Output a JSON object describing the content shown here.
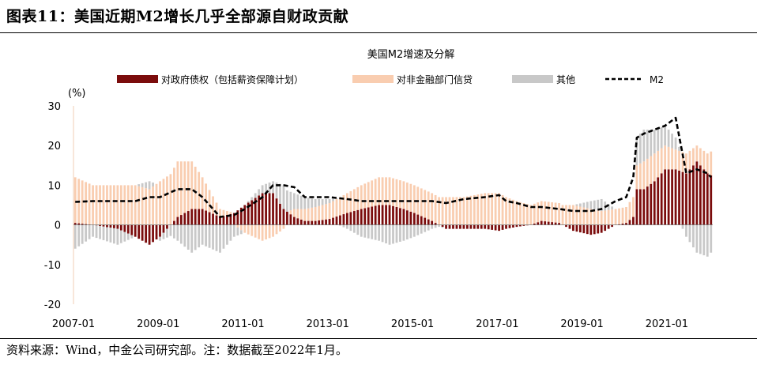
{
  "figure": {
    "title": "图表11：美国近期M2增长几乎全部源自财政贡献",
    "source": "资料来源：Wind，中金公司研究部。注：数据截至2022年1月。"
  },
  "chart_data": {
    "type": "bar",
    "stacked": true,
    "title": "美国M2增速及分解",
    "unit_label": "(%)",
    "ylim": [
      -20,
      30
    ],
    "yticks": [
      "30",
      "20",
      "10",
      "0",
      "-10",
      "-20"
    ],
    "xticks": [
      "2007-01",
      "2009-01",
      "2011-01",
      "2013-01",
      "2015-01",
      "2017-01",
      "2019-01",
      "2021-01"
    ],
    "grid": false,
    "legend_position": "top",
    "x_range": [
      "2007-01",
      "2022-01"
    ],
    "frequency": "monthly",
    "colors": {
      "government": "#7b0c0c",
      "non_financial_credit": "#f9cdb0",
      "other": "#c8c8c8",
      "m2": "#000000"
    },
    "series": [
      {
        "name": "对政府债权（包括薪资保障计划）",
        "kind": "bar",
        "anchors": [
          [
            "2007-01",
            0.5
          ],
          [
            "2007-06",
            0
          ],
          [
            "2008-01",
            -1
          ],
          [
            "2008-06",
            -3
          ],
          [
            "2008-10",
            -5
          ],
          [
            "2009-01",
            -3
          ],
          [
            "2009-06",
            2
          ],
          [
            "2009-10",
            4
          ],
          [
            "2010-01",
            4
          ],
          [
            "2010-06",
            2
          ],
          [
            "2010-10",
            3
          ],
          [
            "2011-01",
            5
          ],
          [
            "2011-06",
            8
          ],
          [
            "2011-09",
            8
          ],
          [
            "2011-12",
            4
          ],
          [
            "2012-03",
            2
          ],
          [
            "2012-06",
            1
          ],
          [
            "2012-09",
            1
          ],
          [
            "2013-01",
            1.5
          ],
          [
            "2013-06",
            3
          ],
          [
            "2013-10",
            4
          ],
          [
            "2014-03",
            5
          ],
          [
            "2014-06",
            5
          ],
          [
            "2014-10",
            4
          ],
          [
            "2015-01",
            3
          ],
          [
            "2015-06",
            1
          ],
          [
            "2015-10",
            -1
          ],
          [
            "2016-03",
            -1
          ],
          [
            "2016-09",
            -1
          ],
          [
            "2017-01",
            -1.5
          ],
          [
            "2017-03",
            -1
          ],
          [
            "2017-06",
            -0.5
          ],
          [
            "2017-10",
            0
          ],
          [
            "2018-01",
            1
          ],
          [
            "2018-06",
            0.5
          ],
          [
            "2018-10",
            -1.5
          ],
          [
            "2019-03",
            -2.5
          ],
          [
            "2019-06",
            -2
          ],
          [
            "2019-10",
            0
          ],
          [
            "2020-01",
            0.5
          ],
          [
            "2020-03",
            2
          ],
          [
            "2020-04",
            9
          ],
          [
            "2020-06",
            9
          ],
          [
            "2020-09",
            11
          ],
          [
            "2020-12",
            14
          ],
          [
            "2021-03",
            14
          ],
          [
            "2021-06",
            13
          ],
          [
            "2021-09",
            16
          ],
          [
            "2021-12",
            13
          ],
          [
            "2022-01",
            12.5
          ]
        ]
      },
      {
        "name": "对非金融部门信贷",
        "kind": "bar",
        "anchors": [
          [
            "2007-01",
            11.5
          ],
          [
            "2007-06",
            10
          ],
          [
            "2008-01",
            10
          ],
          [
            "2008-06",
            10
          ],
          [
            "2008-10",
            9
          ],
          [
            "2009-01",
            11
          ],
          [
            "2009-06",
            14
          ],
          [
            "2009-10",
            12
          ],
          [
            "2010-01",
            8
          ],
          [
            "2010-06",
            2
          ],
          [
            "2010-10",
            0
          ],
          [
            "2011-01",
            -2
          ],
          [
            "2011-06",
            -4
          ],
          [
            "2011-09",
            -3
          ],
          [
            "2011-12",
            -1
          ],
          [
            "2012-03",
            2
          ],
          [
            "2012-06",
            3
          ],
          [
            "2012-09",
            3.5
          ],
          [
            "2013-01",
            4
          ],
          [
            "2013-06",
            5
          ],
          [
            "2013-10",
            6
          ],
          [
            "2014-03",
            7
          ],
          [
            "2014-06",
            7
          ],
          [
            "2014-10",
            7
          ],
          [
            "2015-01",
            7
          ],
          [
            "2015-06",
            7
          ],
          [
            "2015-10",
            7
          ],
          [
            "2016-03",
            7
          ],
          [
            "2016-09",
            8
          ],
          [
            "2017-01",
            8
          ],
          [
            "2017-03",
            7
          ],
          [
            "2017-06",
            6
          ],
          [
            "2017-10",
            5
          ],
          [
            "2018-01",
            5
          ],
          [
            "2018-06",
            5
          ],
          [
            "2018-10",
            5
          ],
          [
            "2019-03",
            4
          ],
          [
            "2019-06",
            3.5
          ],
          [
            "2019-10",
            4
          ],
          [
            "2020-01",
            4
          ],
          [
            "2020-03",
            5
          ],
          [
            "2020-04",
            6
          ],
          [
            "2020-06",
            7
          ],
          [
            "2020-09",
            7
          ],
          [
            "2020-12",
            6
          ],
          [
            "2021-03",
            5
          ],
          [
            "2021-06",
            5
          ],
          [
            "2021-09",
            4
          ],
          [
            "2021-12",
            5
          ],
          [
            "2022-01",
            6
          ]
        ]
      },
      {
        "name": "其他",
        "kind": "bar",
        "anchors": [
          [
            "2007-01",
            -6
          ],
          [
            "2007-06",
            -3
          ],
          [
            "2008-01",
            -4
          ],
          [
            "2008-06",
            0
          ],
          [
            "2008-10",
            2
          ],
          [
            "2009-01",
            -1
          ],
          [
            "2009-06",
            -4
          ],
          [
            "2009-10",
            -7
          ],
          [
            "2010-01",
            -5
          ],
          [
            "2010-06",
            -7
          ],
          [
            "2010-10",
            -3
          ],
          [
            "2011-01",
            0
          ],
          [
            "2011-06",
            2
          ],
          [
            "2011-09",
            3
          ],
          [
            "2011-12",
            6
          ],
          [
            "2012-03",
            4
          ],
          [
            "2012-06",
            3
          ],
          [
            "2012-09",
            2
          ],
          [
            "2013-01",
            1
          ],
          [
            "2013-06",
            -1
          ],
          [
            "2013-10",
            -3
          ],
          [
            "2014-03",
            -4
          ],
          [
            "2014-06",
            -5
          ],
          [
            "2014-10",
            -4
          ],
          [
            "2015-01",
            -3
          ],
          [
            "2015-06",
            -1
          ],
          [
            "2015-10",
            0
          ],
          [
            "2016-03",
            0
          ],
          [
            "2016-09",
            0
          ],
          [
            "2017-01",
            0
          ],
          [
            "2017-03",
            0
          ],
          [
            "2017-06",
            0
          ],
          [
            "2017-10",
            0
          ],
          [
            "2018-01",
            0
          ],
          [
            "2018-06",
            0
          ],
          [
            "2018-10",
            0
          ],
          [
            "2019-03",
            2
          ],
          [
            "2019-06",
            3
          ],
          [
            "2019-10",
            0
          ],
          [
            "2020-01",
            0
          ],
          [
            "2020-03",
            0
          ],
          [
            "2020-04",
            7
          ],
          [
            "2020-06",
            8
          ],
          [
            "2020-09",
            6
          ],
          [
            "2020-12",
            5
          ],
          [
            "2021-03",
            3
          ],
          [
            "2021-06",
            -3
          ],
          [
            "2021-09",
            -7
          ],
          [
            "2021-12",
            -8
          ],
          [
            "2022-01",
            -7
          ]
        ]
      },
      {
        "name": "M2",
        "kind": "line",
        "anchors": [
          [
            "2007-01",
            5.8
          ],
          [
            "2007-06",
            6
          ],
          [
            "2008-01",
            6
          ],
          [
            "2008-06",
            6
          ],
          [
            "2008-10",
            7
          ],
          [
            "2009-01",
            7
          ],
          [
            "2009-06",
            9
          ],
          [
            "2009-10",
            9
          ],
          [
            "2010-01",
            7
          ],
          [
            "2010-06",
            2
          ],
          [
            "2010-10",
            2.5
          ],
          [
            "2011-01",
            4
          ],
          [
            "2011-06",
            7
          ],
          [
            "2011-09",
            10
          ],
          [
            "2011-12",
            10
          ],
          [
            "2012-03",
            9.5
          ],
          [
            "2012-06",
            7
          ],
          [
            "2012-09",
            7
          ],
          [
            "2013-01",
            7
          ],
          [
            "2013-06",
            6.5
          ],
          [
            "2013-10",
            6
          ],
          [
            "2014-03",
            6
          ],
          [
            "2014-06",
            6
          ],
          [
            "2014-10",
            6
          ],
          [
            "2015-01",
            6
          ],
          [
            "2015-06",
            6
          ],
          [
            "2015-10",
            5.5
          ],
          [
            "2016-03",
            6.5
          ],
          [
            "2016-09",
            7
          ],
          [
            "2017-01",
            7.5
          ],
          [
            "2017-03",
            6
          ],
          [
            "2017-06",
            5.5
          ],
          [
            "2017-10",
            4.5
          ],
          [
            "2018-01",
            4.5
          ],
          [
            "2018-06",
            4
          ],
          [
            "2018-10",
            3.5
          ],
          [
            "2019-03",
            3.5
          ],
          [
            "2019-06",
            4
          ],
          [
            "2019-10",
            6
          ],
          [
            "2020-01",
            7
          ],
          [
            "2020-03",
            12
          ],
          [
            "2020-04",
            22
          ],
          [
            "2020-06",
            23
          ],
          [
            "2020-09",
            24
          ],
          [
            "2020-12",
            25
          ],
          [
            "2021-03",
            27
          ],
          [
            "2021-06",
            13
          ],
          [
            "2021-09",
            14
          ],
          [
            "2021-12",
            13
          ],
          [
            "2022-01",
            12
          ]
        ]
      }
    ]
  }
}
